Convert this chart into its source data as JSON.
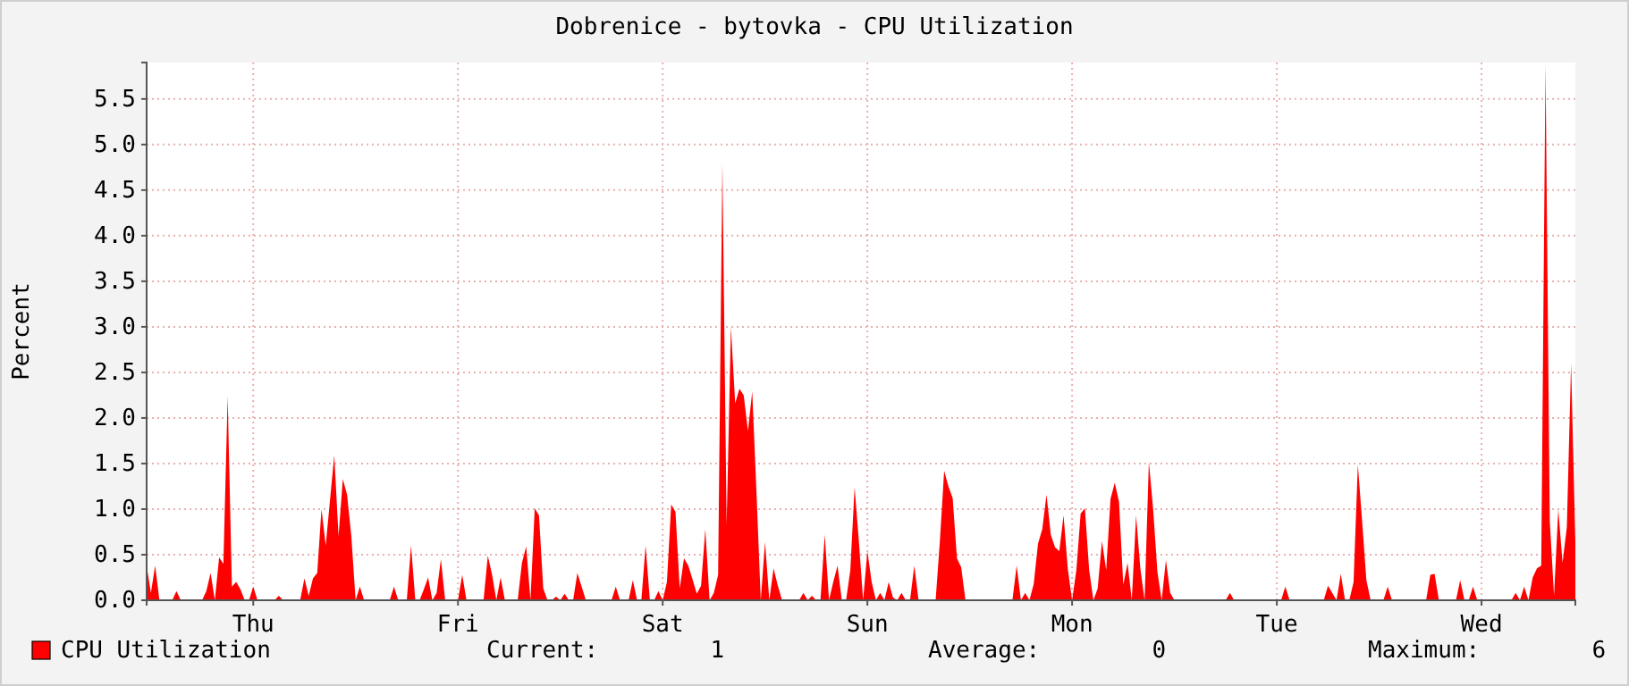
{
  "chart_data": {
    "type": "area",
    "title": "Dobrenice - bytovka - CPU Utilization",
    "ylabel": "Percent",
    "categories": [
      null,
      null,
      null,
      null,
      null,
      null,
      null,
      null,
      null,
      null,
      null,
      null,
      null,
      null,
      null,
      null,
      null,
      null,
      null,
      null,
      null,
      null,
      null,
      null,
      null,
      "Thu",
      null,
      null,
      null,
      null,
      null,
      null,
      null,
      null,
      null,
      null,
      null,
      null,
      null,
      null,
      null,
      null,
      null,
      null,
      null,
      null,
      null,
      null,
      null,
      null,
      null,
      null,
      null,
      null,
      null,
      null,
      null,
      null,
      null,
      null,
      null,
      null,
      null,
      null,
      null,
      null,
      null,
      null,
      null,
      null,
      null,
      null,
      null,
      "Fri",
      null,
      null,
      null,
      null,
      null,
      null,
      null,
      null,
      null,
      null,
      null,
      null,
      null,
      null,
      null,
      null,
      null,
      null,
      null,
      null,
      null,
      null,
      null,
      null,
      null,
      null,
      null,
      null,
      null,
      null,
      null,
      null,
      null,
      null,
      null,
      null,
      null,
      null,
      null,
      null,
      null,
      null,
      null,
      null,
      null,
      null,
      null,
      "Sat",
      null,
      null,
      null,
      null,
      null,
      null,
      null,
      null,
      null,
      null,
      null,
      null,
      null,
      null,
      null,
      null,
      null,
      null,
      null,
      null,
      null,
      null,
      null,
      null,
      null,
      null,
      null,
      null,
      null,
      null,
      null,
      null,
      null,
      null,
      null,
      null,
      null,
      null,
      null,
      null,
      null,
      null,
      null,
      null,
      null,
      null,
      null,
      "Sun",
      null,
      null,
      null,
      null,
      null,
      null,
      null,
      null,
      null,
      null,
      null,
      null,
      null,
      null,
      null,
      null,
      null,
      null,
      null,
      null,
      null,
      null,
      null,
      null,
      null,
      null,
      null,
      null,
      null,
      null,
      null,
      null,
      null,
      null,
      null,
      null,
      null,
      null,
      null,
      null,
      null,
      null,
      null,
      null,
      null,
      null,
      null,
      "Mon",
      null,
      null,
      null,
      null,
      null,
      null,
      null,
      null,
      null,
      null,
      null,
      null,
      null,
      null,
      null,
      null,
      null,
      null,
      null,
      null,
      null,
      null,
      null,
      null,
      null,
      null,
      null,
      null,
      null,
      null,
      null,
      null,
      null,
      null,
      null,
      null,
      null,
      null,
      null,
      null,
      null,
      null,
      null,
      null,
      null,
      null,
      null,
      "Tue",
      null,
      null,
      null,
      null,
      null,
      null,
      null,
      null,
      null,
      null,
      null,
      null,
      null,
      null,
      null,
      null,
      null,
      null,
      null,
      null,
      null,
      null,
      null,
      null,
      null,
      null,
      null,
      null,
      null,
      null,
      null,
      null,
      null,
      null,
      null,
      null,
      null,
      null,
      null,
      null,
      null,
      null,
      null,
      null,
      null,
      null,
      null,
      "Wed",
      null,
      null,
      null,
      null,
      null,
      null,
      null,
      null,
      null,
      null,
      null,
      null,
      null,
      null,
      null,
      null,
      null,
      null,
      null,
      null,
      null,
      null
    ],
    "ylim": [
      0,
      5.9
    ],
    "yticks": [
      {
        "value": 0,
        "label": "0.0"
      },
      0.5,
      {
        "value": 1,
        "label": "1.0"
      },
      1.5,
      {
        "value": 2,
        "label": "2.0"
      },
      2.5,
      {
        "value": 3,
        "label": "3.0"
      },
      3.5,
      {
        "value": 4,
        "label": "4.0"
      },
      4.5,
      {
        "value": 5,
        "label": "5.0"
      },
      5.5
    ],
    "grid": true,
    "legend": "bottom",
    "annotations": [
      "Current:        1",
      "Average:        0",
      "Maximum:        6"
    ],
    "series": [
      {
        "name": "CPU Utilization",
        "color": "#ff0000",
        "values": [
          0.38,
          0.08,
          0.38,
          0,
          0,
          0,
          0,
          0.1,
          0,
          0,
          0,
          0,
          0,
          0,
          0.1,
          0.3,
          0,
          0.47,
          0.4,
          2.24,
          0.15,
          0.2,
          0.12,
          0,
          0,
          0.15,
          0,
          0,
          0,
          0,
          0,
          0.05,
          0,
          0,
          0,
          0,
          0,
          0.24,
          0.05,
          0.24,
          0.3,
          1.0,
          0.6,
          1.1,
          1.59,
          0.7,
          1.33,
          1.16,
          0.7,
          0,
          0.15,
          0,
          0,
          0,
          0,
          0,
          0,
          0,
          0.15,
          0,
          0,
          0,
          0.6,
          0,
          0,
          0.12,
          0.25,
          0,
          0.08,
          0.45,
          0,
          0,
          0,
          0,
          0.28,
          0,
          0,
          0,
          0,
          0,
          0.49,
          0.28,
          0,
          0.25,
          0,
          0,
          0,
          0,
          0.41,
          0.59,
          0,
          1.01,
          0.93,
          0.13,
          0,
          0,
          0.04,
          0,
          0.07,
          0,
          0,
          0.3,
          0.15,
          0,
          0,
          0,
          0,
          0,
          0,
          0,
          0.15,
          0,
          0,
          0,
          0.22,
          0,
          0,
          0.6,
          0,
          0,
          0.1,
          0,
          0.2,
          1.05,
          0.97,
          0.13,
          0.46,
          0.38,
          0.23,
          0.07,
          0.16,
          0.78,
          0,
          0.08,
          0.28,
          4.79,
          0.82,
          3.0,
          2.16,
          2.32,
          2.25,
          1.86,
          2.29,
          1.18,
          0,
          0.64,
          0,
          0.35,
          0.16,
          0,
          0,
          0,
          0,
          0,
          0.08,
          0,
          0.05,
          0,
          0,
          0.72,
          0,
          0.2,
          0.38,
          0,
          0,
          0.33,
          1.24,
          0.65,
          0,
          0.54,
          0.2,
          0,
          0.08,
          0,
          0.2,
          0.03,
          0,
          0.08,
          0,
          0,
          0.38,
          0,
          0,
          0,
          0,
          0,
          0.65,
          1.42,
          1.25,
          1.12,
          0.46,
          0.36,
          0,
          0,
          0,
          0,
          0,
          0,
          0,
          0,
          0,
          0,
          0,
          0,
          0.38,
          0,
          0.08,
          0,
          0.18,
          0.62,
          0.78,
          1.16,
          0.72,
          0.58,
          0.54,
          0.93,
          0.34,
          0,
          0.33,
          0.95,
          1.01,
          0.33,
          0,
          0.13,
          0.65,
          0.33,
          1.11,
          1.29,
          1.08,
          0.17,
          0.41,
          0,
          0.93,
          0.35,
          0,
          1.52,
          1.0,
          0.31,
          0,
          0.44,
          0.08,
          0,
          0,
          0,
          0,
          0,
          0,
          0,
          0,
          0,
          0,
          0,
          0,
          0,
          0.08,
          0,
          0,
          0,
          0,
          0,
          0,
          0,
          0,
          0,
          0,
          0,
          0,
          0.15,
          0,
          0,
          0,
          0,
          0,
          0,
          0,
          0,
          0,
          0.16,
          0.08,
          0,
          0.29,
          0,
          0,
          0.2,
          1.49,
          0.87,
          0.22,
          0,
          0,
          0,
          0,
          0.15,
          0,
          0,
          0,
          0,
          0,
          0,
          0,
          0,
          0,
          0.28,
          0.29,
          0,
          0,
          0,
          0,
          0,
          0.22,
          0,
          0,
          0.15,
          0,
          0,
          0,
          0,
          0,
          0,
          0,
          0,
          0,
          0.08,
          0,
          0.15,
          0,
          0.25,
          0.35,
          0.38,
          5.88,
          0.87,
          0.05,
          1.0,
          0.41,
          0.8,
          2.6,
          0.64
        ]
      }
    ]
  }
}
